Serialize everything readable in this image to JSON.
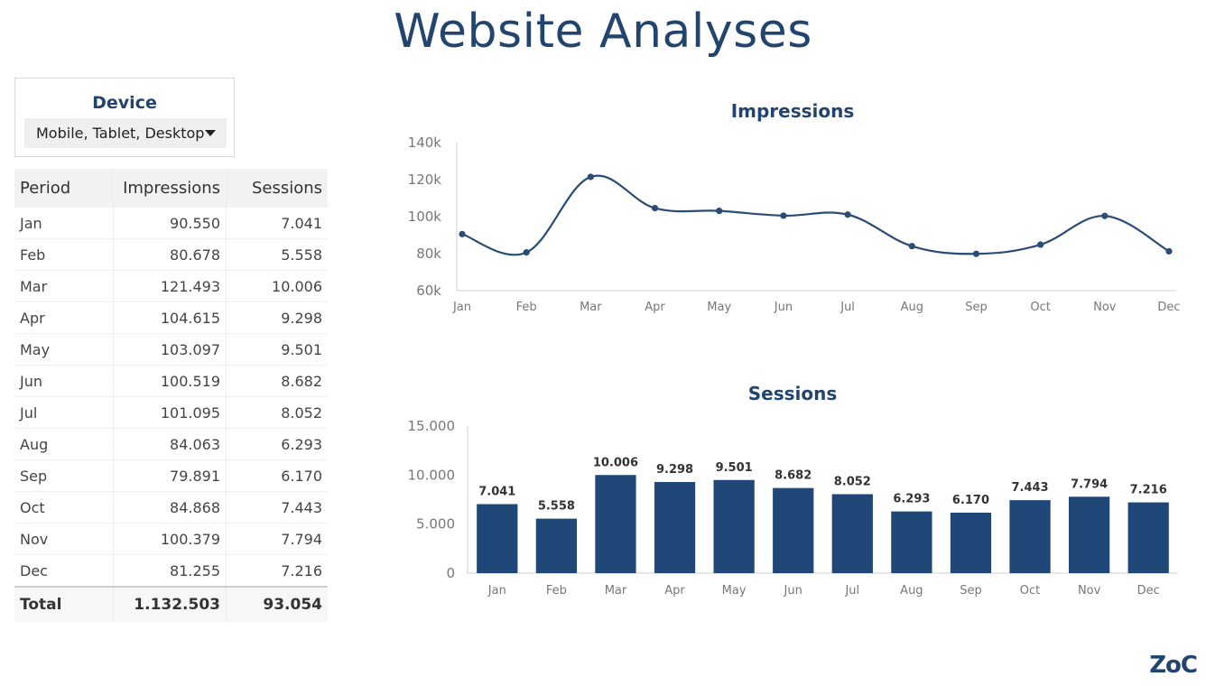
{
  "title": "Website Analyses",
  "device_filter": {
    "label": "Device",
    "selected": "Mobile, Tablet, Desktop"
  },
  "table": {
    "headers": [
      "Period",
      "Impressions",
      "Sessions"
    ],
    "rows": [
      [
        "Jan",
        "90.550",
        "7.041"
      ],
      [
        "Feb",
        "80.678",
        "5.558"
      ],
      [
        "Mar",
        "121.493",
        "10.006"
      ],
      [
        "Apr",
        "104.615",
        "9.298"
      ],
      [
        "May",
        "103.097",
        "9.501"
      ],
      [
        "Jun",
        "100.519",
        "8.682"
      ],
      [
        "Jul",
        "101.095",
        "8.052"
      ],
      [
        "Aug",
        "84.063",
        "6.293"
      ],
      [
        "Sep",
        "79.891",
        "6.170"
      ],
      [
        "Oct",
        "84.868",
        "7.443"
      ],
      [
        "Nov",
        "100.379",
        "7.794"
      ],
      [
        "Dec",
        "81.255",
        "7.216"
      ]
    ],
    "total": [
      "Total",
      "1.132.503",
      "93.054"
    ]
  },
  "colors": {
    "accent": "#22446e",
    "bar": "#1f4777",
    "line": "#2b4c74"
  },
  "chart_data": [
    {
      "type": "line",
      "title": "Impressions",
      "categories": [
        "Jan",
        "Feb",
        "Mar",
        "Apr",
        "May",
        "Jun",
        "Jul",
        "Aug",
        "Sep",
        "Oct",
        "Nov",
        "Dec"
      ],
      "values": [
        90550,
        80678,
        121493,
        104615,
        103097,
        100519,
        101095,
        84063,
        79891,
        84868,
        100379,
        81255
      ],
      "ylim": [
        60000,
        140000
      ],
      "yticks": [
        60000,
        80000,
        100000,
        120000,
        140000
      ],
      "ytick_labels": [
        "60k",
        "80k",
        "100k",
        "120k",
        "140k"
      ],
      "grid": false
    },
    {
      "type": "bar",
      "title": "Sessions",
      "categories": [
        "Jan",
        "Feb",
        "Mar",
        "Apr",
        "May",
        "Jun",
        "Jul",
        "Aug",
        "Sep",
        "Oct",
        "Nov",
        "Dec"
      ],
      "values": [
        7041,
        5558,
        10006,
        9298,
        9501,
        8682,
        8052,
        6293,
        6170,
        7443,
        7794,
        7216
      ],
      "value_labels": [
        "7.041",
        "5.558",
        "10.006",
        "9.298",
        "9.501",
        "8.682",
        "8.052",
        "6.293",
        "6.170",
        "7.443",
        "7.794",
        "7.216"
      ],
      "ylim": [
        0,
        15000
      ],
      "yticks": [
        0,
        5000,
        10000,
        15000
      ],
      "ytick_labels": [
        "0",
        "5.000",
        "10.000",
        "15.000"
      ],
      "grid": false
    }
  ],
  "brand": "ZoC"
}
